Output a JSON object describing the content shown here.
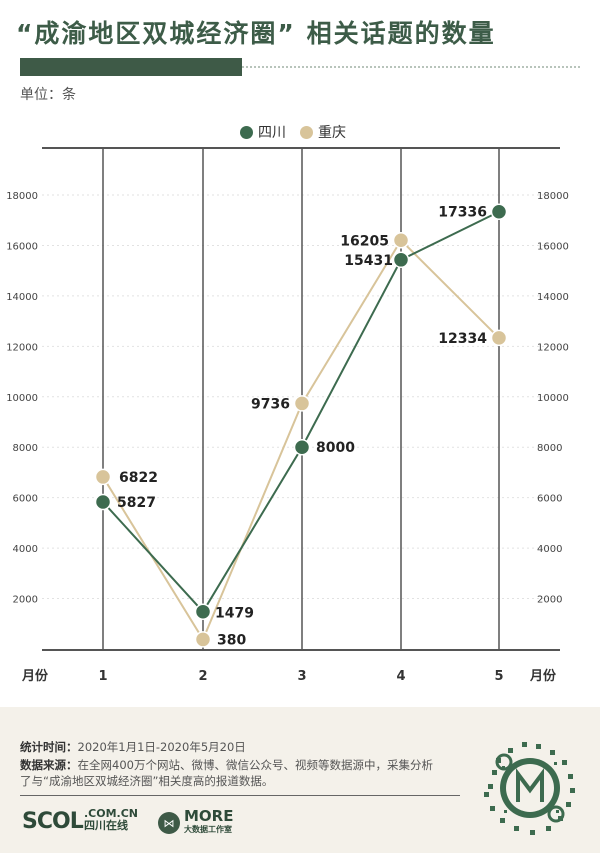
{
  "header": {
    "title": "“成渝地区双城经济圈” 相关话题的数量",
    "unit": "单位：条"
  },
  "legend": [
    {
      "label": "四川",
      "color": "#3d6b4f"
    },
    {
      "label": "重庆",
      "color": "#d8c49a"
    }
  ],
  "chart_data": {
    "type": "line",
    "x": [
      1,
      2,
      3,
      4,
      5
    ],
    "xlabel_left": "月份",
    "xlabel_right": "月份",
    "ylim": [
      0,
      18000
    ],
    "yticks": [
      2000,
      4000,
      6000,
      8000,
      10000,
      12000,
      14000,
      16000,
      18000
    ],
    "series": [
      {
        "name": "四川",
        "color": "#3d6b4f",
        "values": [
          5827,
          1479,
          8000,
          15431,
          17336
        ]
      },
      {
        "name": "重庆",
        "color": "#d8c49a",
        "values": [
          6822,
          380,
          9736,
          16205,
          12334
        ]
      }
    ]
  },
  "footer": {
    "stat_time_label": "统计时间：",
    "stat_time_value": "2020年1月1日-2020年5月20日",
    "source_label": "数据来源：",
    "source_value_1": "在全网400万个网站、微博、微信公众号、视频等数据源中，采集分析",
    "source_value_2": "了与“成渝地区双城经济圈”相关度高的报道数据。",
    "logo_scol": "SCOL",
    "logo_scol_domain": ".COM.CN",
    "logo_scol_name": "四川在线",
    "logo_more": "MORE",
    "logo_more_sub": "大数据工作室"
  }
}
